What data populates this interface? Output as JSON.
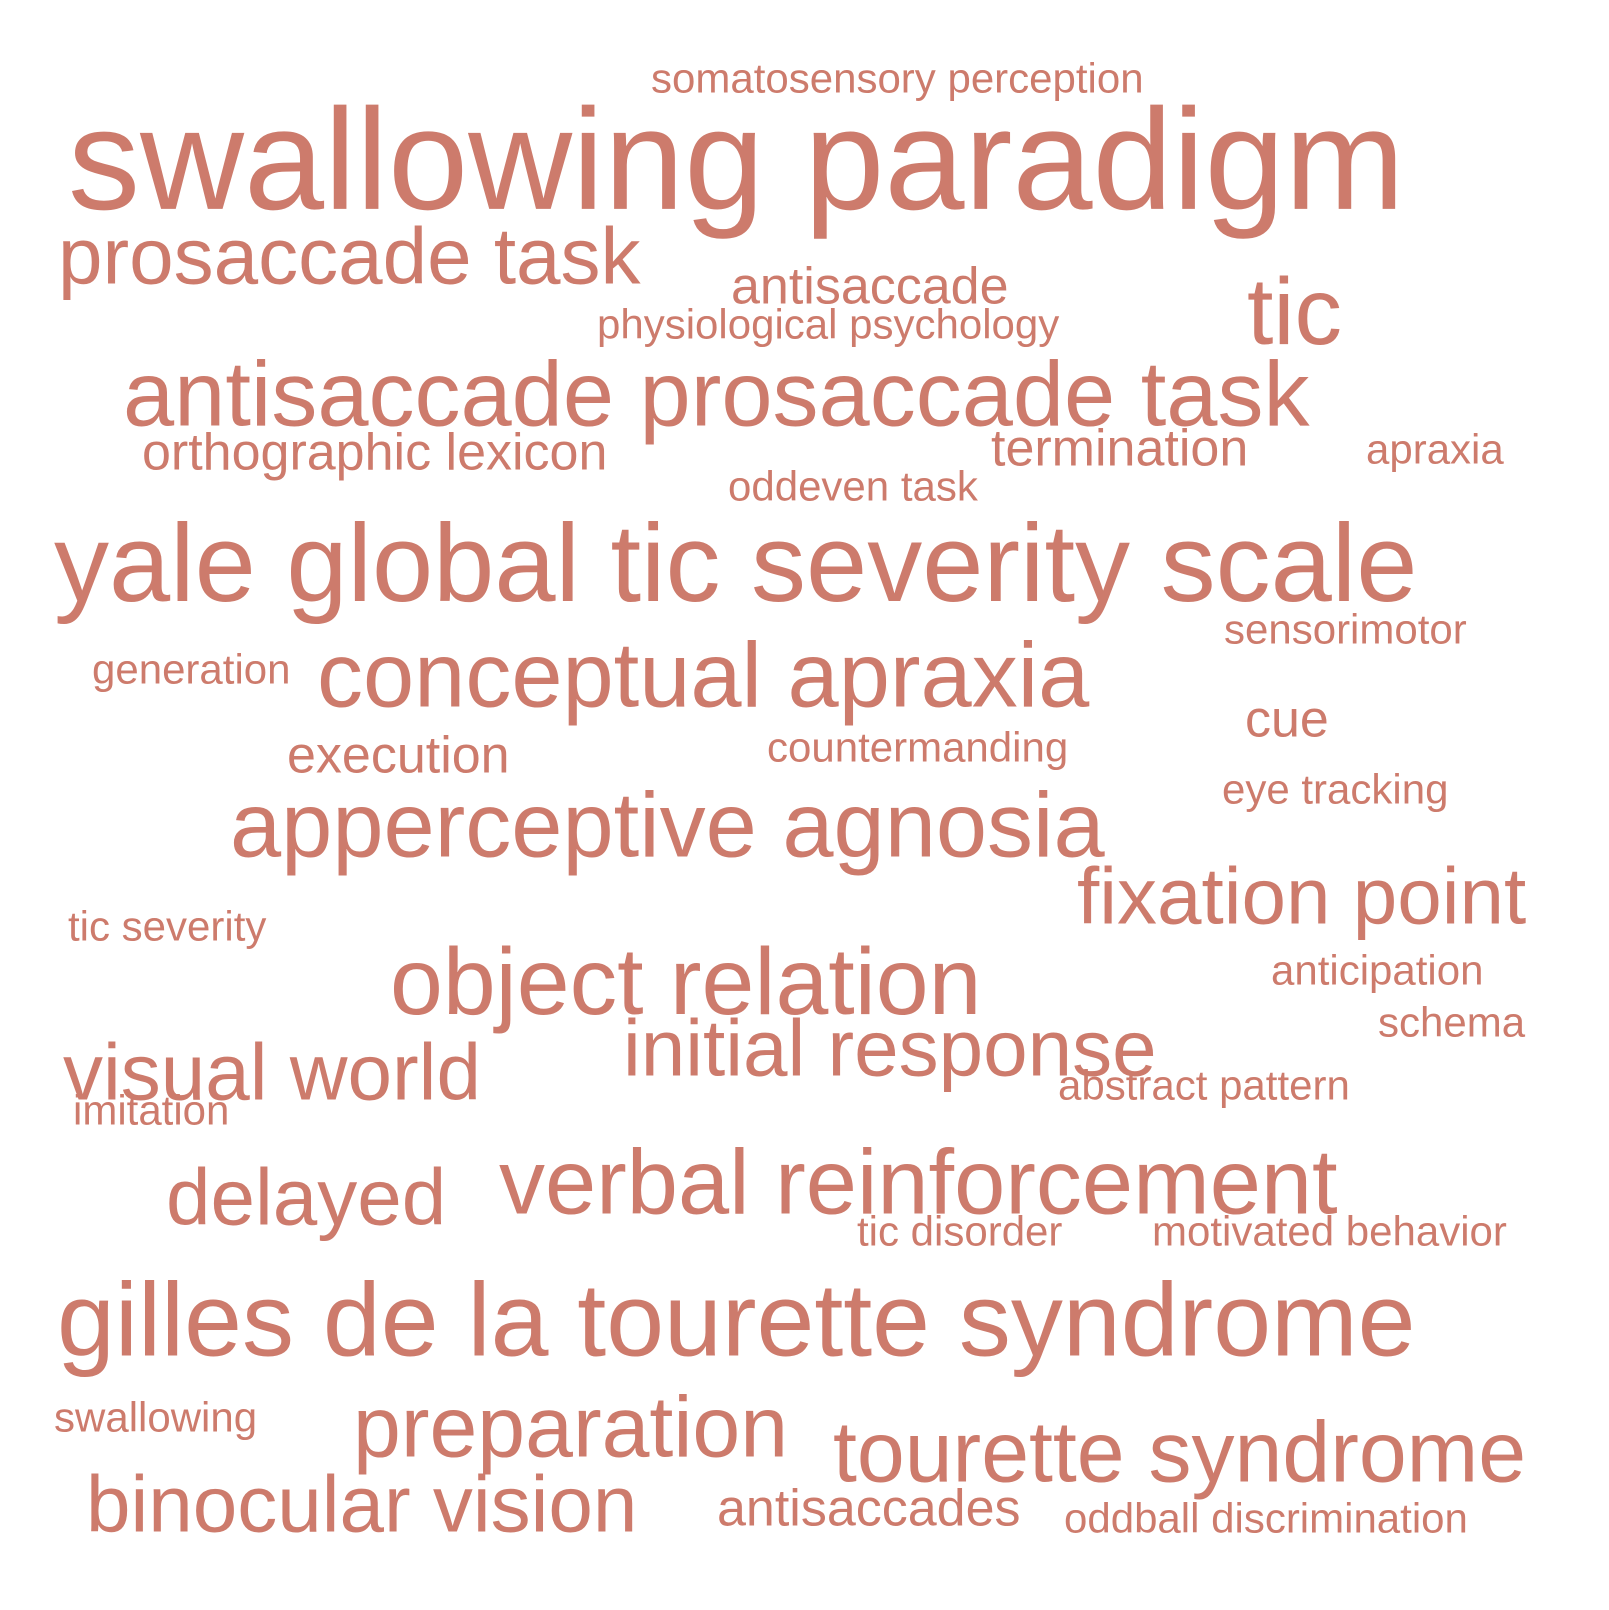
{
  "colors": {
    "word": "#cd7b6c",
    "background": "#ffffff"
  },
  "words": [
    "somatosensory perception",
    "swallowing paradigm",
    "prosaccade task",
    "antisaccade",
    "physiological psychology",
    "tic",
    "antisaccade prosaccade task",
    "orthographic lexicon",
    "termination",
    "apraxia",
    "oddeven task",
    "yale global tic severity scale",
    "sensorimotor",
    "generation",
    "conceptual apraxia",
    "cue",
    "execution",
    "countermanding",
    "eye tracking",
    "apperceptive agnosia",
    "fixation point",
    "tic severity",
    "object relation",
    "anticipation",
    "initial response",
    "schema",
    "visual world",
    "abstract pattern",
    "imitation",
    "verbal reinforcement",
    "delayed",
    "tic disorder",
    "motivated behavior",
    "gilles de la tourette syndrome",
    "swallowing",
    "preparation",
    "tourette syndrome",
    "binocular vision",
    "antisaccades",
    "oddball discrimination"
  ]
}
